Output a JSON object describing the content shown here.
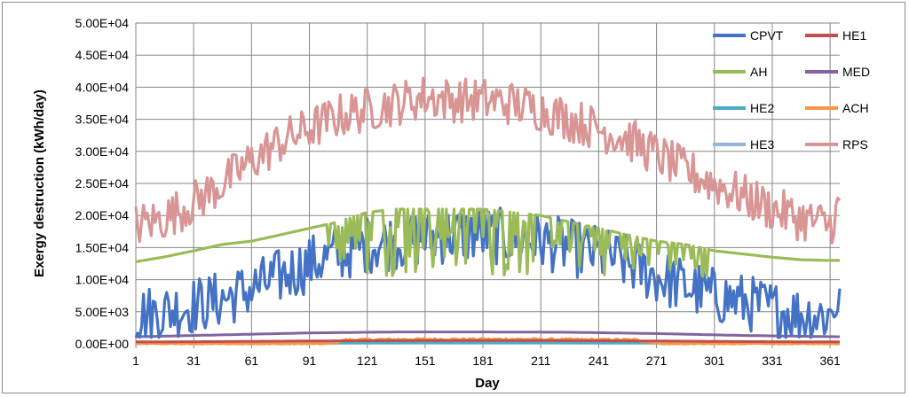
{
  "chart_data": {
    "type": "line",
    "title": "",
    "xlabel": "Day",
    "ylabel": "Exergy destruction (kWh/day)",
    "xlim": [
      1,
      366
    ],
    "ylim": [
      0,
      50000
    ],
    "x_ticks": [
      1,
      31,
      61,
      91,
      121,
      151,
      181,
      211,
      241,
      271,
      301,
      331,
      361
    ],
    "y_ticks": [
      "0.00E+00",
      "5.00E+03",
      "1.00E+04",
      "1.50E+04",
      "2.00E+04",
      "2.50E+04",
      "3.00E+04",
      "3.50E+04",
      "4.00E+04",
      "4.50E+04",
      "5.00E+04"
    ],
    "grid": true,
    "legend_position": "top-right",
    "series": [
      {
        "name": "CPVT",
        "color": "#4472c4",
        "style": "noisy",
        "x": [
          1,
          15,
          31,
          46,
          61,
          76,
          91,
          106,
          121,
          136,
          151,
          166,
          181,
          196,
          211,
          226,
          241,
          256,
          271,
          286,
          301,
          316,
          331,
          346,
          361,
          366
        ],
        "y": [
          4500,
          5000,
          6000,
          7000,
          8500,
          10500,
          12500,
          14000,
          15500,
          16000,
          16500,
          17000,
          17000,
          16500,
          16000,
          15000,
          14000,
          12500,
          10500,
          9000,
          7500,
          6500,
          5500,
          4500,
          4500,
          7800
        ],
        "amplitude": 4500,
        "min": 1000,
        "max": 22000
      },
      {
        "name": "HE1",
        "color": "#c0504d",
        "style": "smooth",
        "x": [
          1,
          46,
          91,
          136,
          181,
          226,
          271,
          316,
          366
        ],
        "y": [
          300,
          350,
          450,
          500,
          520,
          500,
          450,
          350,
          300
        ]
      },
      {
        "name": "AH",
        "color": "#9bbb59",
        "style": "noisy-band",
        "x": [
          1,
          5,
          15,
          31,
          46,
          61,
          76,
          91,
          106,
          121,
          136,
          151,
          166,
          181,
          196,
          211,
          226,
          241,
          256,
          271,
          286,
          301,
          316,
          331,
          346,
          361,
          366
        ],
        "y": [
          12800,
          13000,
          13500,
          14500,
          15500,
          16000,
          17000,
          18000,
          19000,
          20500,
          21000,
          21000,
          21000,
          21000,
          20500,
          20000,
          19000,
          18000,
          17000,
          16000,
          15500,
          14500,
          14000,
          13500,
          13100,
          13000,
          13000
        ],
        "noisy_range": [
          100,
          300
        ],
        "band_floor": 10500
      },
      {
        "name": "MED",
        "color": "#8064a2",
        "style": "smooth",
        "x": [
          1,
          46,
          91,
          136,
          181,
          226,
          271,
          316,
          366
        ],
        "y": [
          1100,
          1400,
          1700,
          1850,
          1850,
          1800,
          1600,
          1300,
          1100
        ]
      },
      {
        "name": "HE2",
        "color": "#4bacc6",
        "style": "smooth",
        "x": [
          1,
          91,
          181,
          271,
          366
        ],
        "y": [
          100,
          150,
          180,
          150,
          100
        ]
      },
      {
        "name": "ACH",
        "color": "#f79646",
        "style": "noisy",
        "x": [
          1,
          100,
          110,
          150,
          200,
          260,
          275,
          366
        ],
        "y": [
          0,
          0,
          600,
          700,
          700,
          600,
          0,
          0
        ],
        "amplitude": 150,
        "min": 0,
        "max": 900
      },
      {
        "name": "HE3",
        "color": "#95b3d7",
        "style": "smooth",
        "x": [
          1,
          91,
          181,
          271,
          366
        ],
        "y": [
          50,
          80,
          100,
          80,
          50
        ]
      },
      {
        "name": "RPS",
        "color": "#d99594",
        "style": "noisy",
        "x": [
          1,
          15,
          31,
          46,
          61,
          76,
          91,
          106,
          121,
          136,
          151,
          166,
          181,
          196,
          211,
          226,
          241,
          256,
          271,
          286,
          301,
          316,
          331,
          346,
          361,
          366
        ],
        "y": [
          18500,
          19500,
          22000,
          25000,
          28500,
          31500,
          33500,
          35500,
          36500,
          37500,
          38500,
          38000,
          38000,
          37500,
          36500,
          35000,
          33500,
          32000,
          29500,
          27000,
          25000,
          23000,
          21000,
          19500,
          18500,
          21500
        ],
        "amplitude": 3500,
        "min": 15000,
        "max": 43000
      }
    ]
  }
}
